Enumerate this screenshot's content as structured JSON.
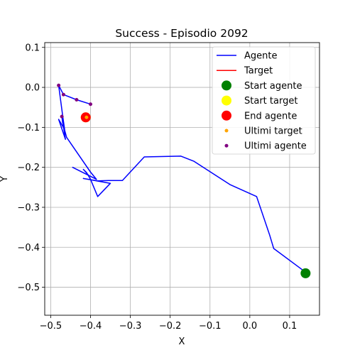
{
  "chart_data": {
    "type": "line",
    "title": "Success - Episodio 2092",
    "xlabel": "X",
    "ylabel": "Y",
    "xlim": [
      -0.515,
      0.175
    ],
    "ylim": [
      -0.57,
      0.112
    ],
    "grid": true,
    "legend_position": "top-right",
    "x_ticks": [
      -0.5,
      -0.4,
      -0.3,
      -0.2,
      -0.1,
      0.0,
      0.1
    ],
    "x_tick_labels": [
      "−0.5",
      "−0.4",
      "−0.3",
      "−0.2",
      "−0.1",
      "0.0",
      "0.1"
    ],
    "y_ticks": [
      0.1,
      0.0,
      -0.1,
      -0.2,
      -0.3,
      -0.4,
      -0.5
    ],
    "y_tick_labels": [
      "0.1",
      "0.0",
      "−0.1",
      "−0.2",
      "−0.3",
      "−0.4",
      "−0.5"
    ],
    "series": [
      {
        "name": "Agente",
        "kind": "line",
        "color": "#0000ff",
        "points": [
          [
            0.14,
            -0.465
          ],
          [
            0.13,
            -0.455
          ],
          [
            0.06,
            -0.403
          ],
          [
            0.05,
            -0.37
          ],
          [
            0.017,
            -0.273
          ],
          [
            -0.05,
            -0.243
          ],
          [
            -0.14,
            -0.185
          ],
          [
            -0.173,
            -0.172
          ],
          [
            -0.265,
            -0.174
          ],
          [
            -0.32,
            -0.233
          ],
          [
            -0.355,
            -0.233
          ],
          [
            -0.382,
            -0.234
          ],
          [
            -0.418,
            -0.228
          ],
          [
            -0.35,
            -0.24
          ],
          [
            -0.382,
            -0.273
          ],
          [
            -0.4,
            -0.23
          ],
          [
            -0.41,
            -0.213
          ],
          [
            -0.418,
            -0.205
          ],
          [
            -0.405,
            -0.22
          ],
          [
            -0.445,
            -0.2
          ],
          [
            -0.385,
            -0.23
          ],
          [
            -0.4,
            -0.212
          ],
          [
            -0.46,
            -0.125
          ],
          [
            -0.47,
            -0.088
          ],
          [
            -0.472,
            -0.073
          ],
          [
            -0.463,
            -0.13
          ],
          [
            -0.48,
            -0.08
          ],
          [
            -0.465,
            -0.105
          ],
          [
            -0.47,
            -0.07
          ],
          [
            -0.48,
            0.005
          ],
          [
            -0.468,
            -0.018
          ],
          [
            -0.435,
            -0.031
          ],
          [
            -0.4,
            -0.042
          ]
        ]
      },
      {
        "name": "Target",
        "kind": "line",
        "color": "#ff0000",
        "points": [
          [
            -0.412,
            -0.075
          ],
          [
            -0.41,
            -0.075
          ]
        ]
      },
      {
        "name": "Start agente",
        "kind": "marker",
        "color": "#008000",
        "size": 7,
        "points": [
          [
            0.14,
            -0.465
          ]
        ]
      },
      {
        "name": "Start target",
        "kind": "marker",
        "color": "#ffff00",
        "size": 7,
        "points": [
          [
            -0.412,
            -0.075
          ]
        ]
      },
      {
        "name": "End agente",
        "kind": "marker",
        "color": "#ff0000",
        "size": 7,
        "points": [
          [
            -0.412,
            -0.075
          ]
        ]
      },
      {
        "name": "Ultimi target",
        "kind": "marker",
        "color": "#ffa500",
        "size": 2.5,
        "points": [
          [
            -0.41,
            -0.075
          ]
        ]
      },
      {
        "name": "Ultimi agente",
        "kind": "marker",
        "color": "#800080",
        "size": 2.5,
        "points": [
          [
            -0.48,
            0.005
          ],
          [
            -0.468,
            -0.018
          ],
          [
            -0.435,
            -0.031
          ],
          [
            -0.4,
            -0.042
          ],
          [
            -0.472,
            -0.073
          ]
        ]
      }
    ]
  }
}
